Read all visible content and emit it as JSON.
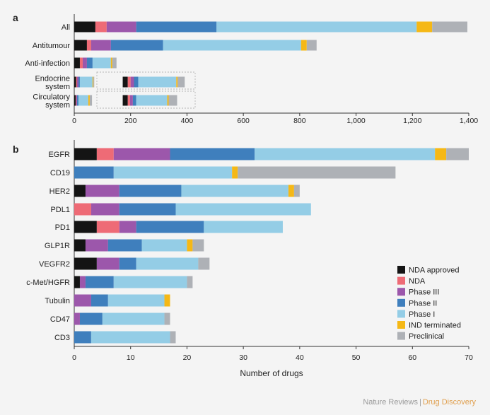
{
  "chart_data": [
    {
      "panel_letter": "a",
      "type": "bar",
      "stacked": true,
      "orientation": "horizontal",
      "categories": [
        "All",
        "Antitumour",
        "Anti-infection",
        "Endocrine\nsystem",
        "Circulatory\nsystem"
      ],
      "series": [
        {
          "name": "NDA approved",
          "values": [
            75,
            45,
            20,
            7,
            5
          ]
        },
        {
          "name": "NDA",
          "values": [
            40,
            15,
            10,
            3,
            2
          ]
        },
        {
          "name": "Phase III",
          "values": [
            105,
            70,
            15,
            5,
            3
          ]
        },
        {
          "name": "Phase II",
          "values": [
            285,
            185,
            20,
            5,
            5
          ]
        },
        {
          "name": "Phase I",
          "values": [
            710,
            490,
            65,
            45,
            35
          ]
        },
        {
          "name": "IND terminated",
          "values": [
            55,
            20,
            5,
            3,
            5
          ]
        },
        {
          "name": "Preclinical",
          "values": [
            125,
            35,
            15,
            3,
            8
          ]
        }
      ],
      "secondary_bars": {
        "Endocrine\nsystem": [
          18,
          10,
          12,
          15,
          135,
          5,
          25
        ],
        "Circulatory\nsystem": [
          18,
          8,
          10,
          12,
          110,
          5,
          30
        ]
      },
      "xlim": [
        0,
        1400
      ],
      "xticks": [
        0,
        200,
        400,
        600,
        800,
        1000,
        1200,
        1400
      ],
      "xtick_labels": [
        "0",
        "200",
        "400",
        "600",
        "800",
        "1,000",
        "1,200",
        "1,400"
      ],
      "xlabel": ""
    },
    {
      "panel_letter": "b",
      "type": "bar",
      "stacked": true,
      "orientation": "horizontal",
      "categories": [
        "EGFR",
        "CD19",
        "HER2",
        "PDL1",
        "PD1",
        "GLP1R",
        "VEGFR2",
        "c-Met/HGFR",
        "Tubulin",
        "CD47",
        "CD3"
      ],
      "series": [
        {
          "name": "NDA approved",
          "values": [
            4,
            0,
            2,
            0,
            4,
            2,
            4,
            1,
            0,
            0,
            0
          ]
        },
        {
          "name": "NDA",
          "values": [
            3,
            0,
            0,
            3,
            4,
            0,
            0,
            0,
            0,
            0,
            0
          ]
        },
        {
          "name": "Phase III",
          "values": [
            10,
            0,
            6,
            5,
            3,
            4,
            4,
            1,
            3,
            1,
            0
          ]
        },
        {
          "name": "Phase II",
          "values": [
            15,
            7,
            11,
            10,
            12,
            6,
            3,
            5,
            3,
            4,
            3
          ]
        },
        {
          "name": "Phase I",
          "values": [
            32,
            21,
            19,
            24,
            14,
            8,
            11,
            13,
            10,
            11,
            14
          ]
        },
        {
          "name": "IND terminated",
          "values": [
            2,
            1,
            1,
            0,
            0,
            1,
            0,
            0,
            1,
            0,
            0
          ]
        },
        {
          "name": "Preclinical",
          "values": [
            4,
            28,
            1,
            0,
            0,
            2,
            2,
            1,
            0,
            1,
            1
          ]
        }
      ],
      "xlim": [
        0,
        70
      ],
      "xticks": [
        0,
        10,
        20,
        30,
        40,
        50,
        60,
        70
      ],
      "xtick_labels": [
        "0",
        "10",
        "20",
        "30",
        "40",
        "50",
        "60",
        "70"
      ],
      "xlabel": "Number of drugs",
      "legend_position": "bottom-right"
    }
  ],
  "legend": [
    "NDA approved",
    "NDA",
    "Phase III",
    "Phase II",
    "Phase I",
    "IND terminated",
    "Preclinical"
  ],
  "colors": {
    "NDA approved": "#141414",
    "NDA": "#ee6b76",
    "Phase III": "#9c57ab",
    "Phase II": "#3f7fbd",
    "Phase I": "#94cde6",
    "IND terminated": "#f5b816",
    "Preclinical": "#aeb1b6"
  },
  "credit": {
    "journal": "Nature Reviews",
    "separator": "|",
    "section": "Drug Discovery"
  }
}
